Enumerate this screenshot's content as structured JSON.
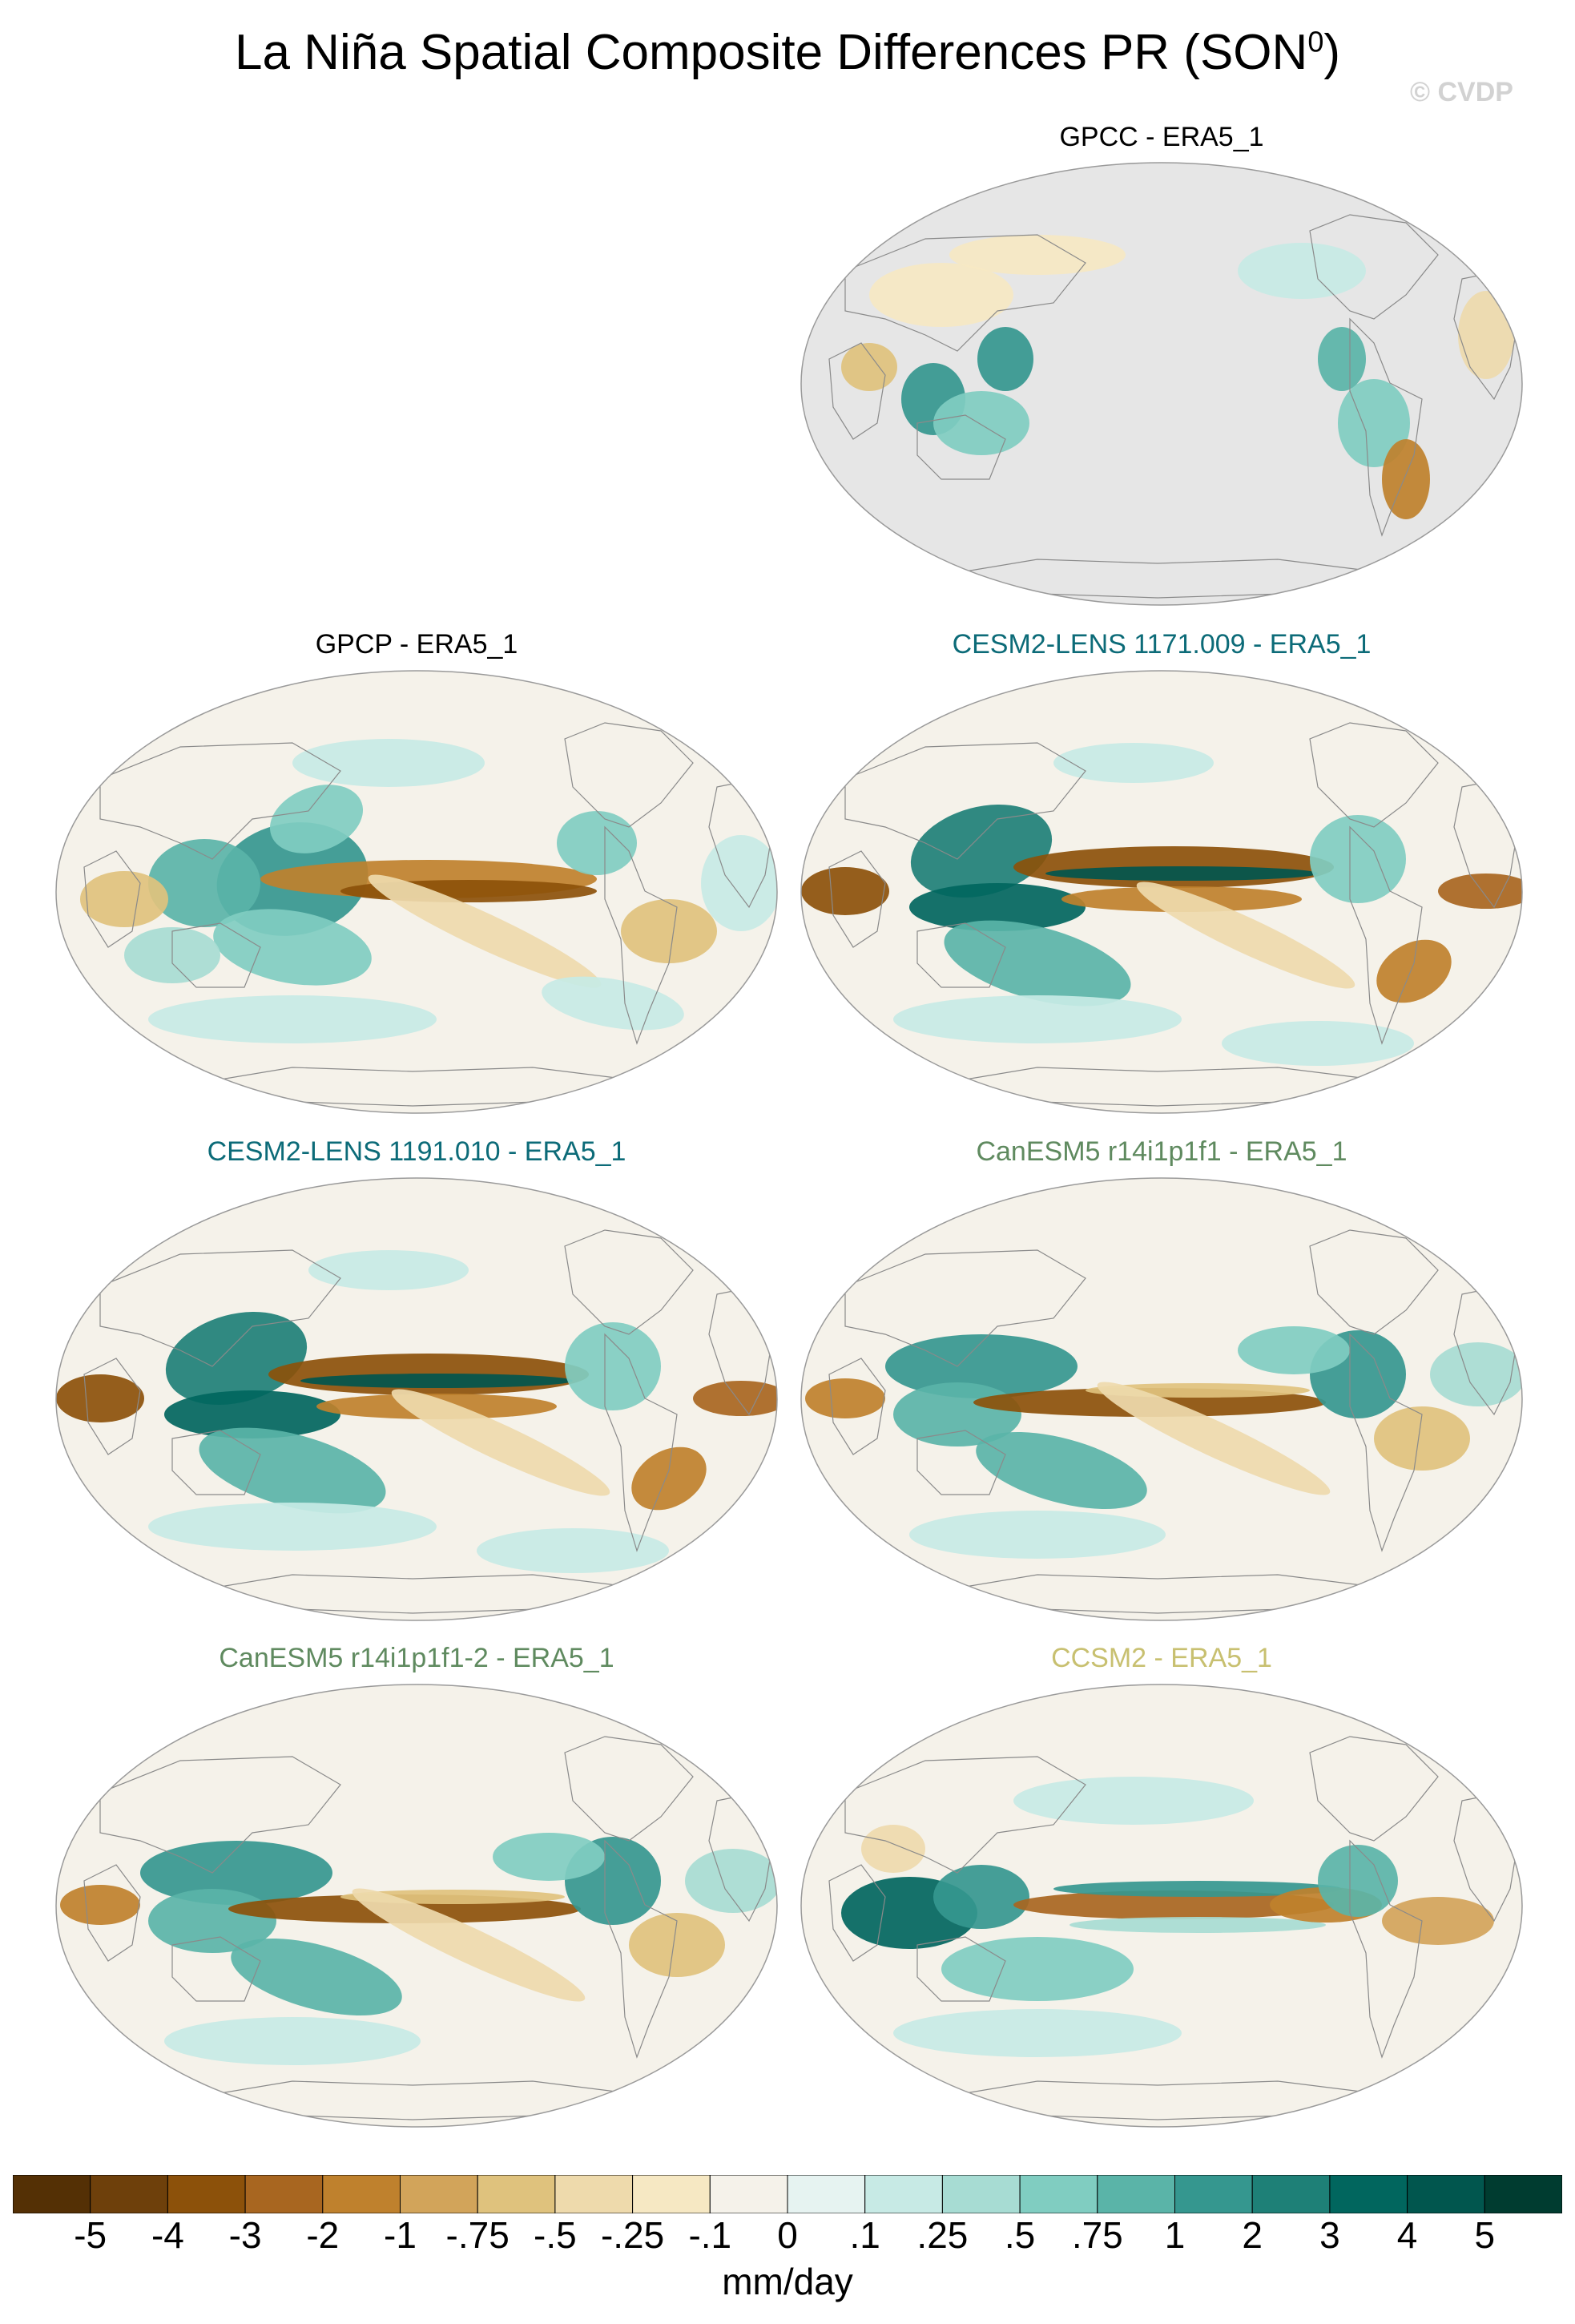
{
  "title": "La Niña Spatial Composite Differences PR (SON",
  "title_sup": "0",
  "title_end": ")",
  "watermark": "© CVDP",
  "panels": [
    {
      "label": "GPCC - ERA5_1",
      "color": "#000000",
      "kind": "land"
    },
    {
      "label": "GPCP - ERA5_1",
      "color": "#000000",
      "kind": "a"
    },
    {
      "label": "CESM2-LENS 1171.009 - ERA5_1",
      "color": "#0c6b78",
      "kind": "b"
    },
    {
      "label": "CESM2-LENS 1191.010 - ERA5_1",
      "color": "#0c6b78",
      "kind": "b"
    },
    {
      "label": "CanESM5 r14i1p1f1 - ERA5_1",
      "color": "#5f8a5f",
      "kind": "c"
    },
    {
      "label": "CanESM5 r14i1p1f1-2 - ERA5_1",
      "color": "#5f8a5f",
      "kind": "c"
    },
    {
      "label": "CCSM2 - ERA5_1",
      "color": "#c8c070",
      "kind": "d"
    }
  ],
  "colorbar": {
    "colors": [
      "#543005",
      "#6e400b",
      "#8c510a",
      "#a86620",
      "#bf812d",
      "#d2a45a",
      "#dfc27d",
      "#eedaac",
      "#f6e8c3",
      "#f5f2ea",
      "#e6f3f1",
      "#c7eae5",
      "#a7dcd3",
      "#80cdc1",
      "#5ab4a8",
      "#35978f",
      "#1e8077",
      "#01665e",
      "#01564e",
      "#003c30"
    ],
    "labels": [
      "-5",
      "-4",
      "-3",
      "-2",
      "-1",
      "-.75",
      "-.5",
      "-.25",
      "-.1",
      "0",
      ".1",
      ".25",
      ".5",
      ".75",
      "1",
      "2",
      "3",
      "4",
      "5"
    ],
    "units": "mm/day"
  }
}
